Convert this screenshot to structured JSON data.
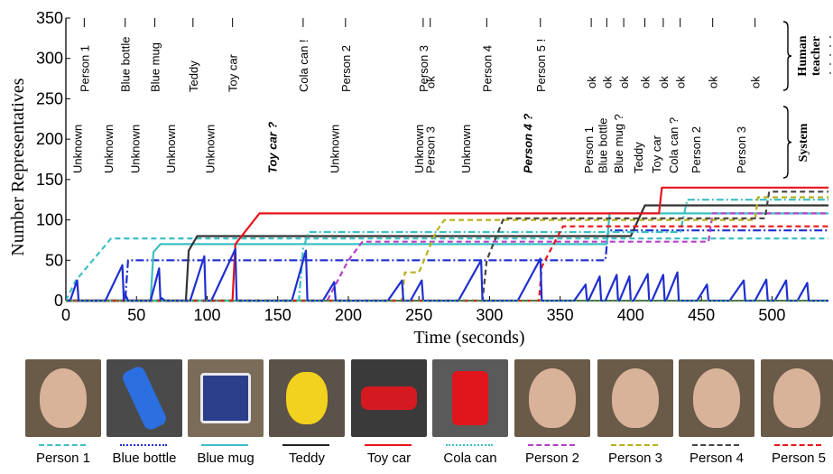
{
  "chart_data": {
    "type": "line",
    "xlabel": "Time (seconds)",
    "ylabel": "Number Representatives",
    "xlim": [
      0,
      540
    ],
    "ylim": [
      0,
      350
    ],
    "xticks": [
      0,
      50,
      100,
      150,
      200,
      250,
      300,
      350,
      400,
      450,
      500
    ],
    "yticks": [
      0,
      50,
      100,
      150,
      200,
      250,
      300,
      350
    ],
    "grid": false,
    "legend_placement": "bottom",
    "series": [
      {
        "name": "Person 1",
        "color": "#3dbfc4",
        "dash": "6,4",
        "points": [
          [
            0,
            0
          ],
          [
            7,
            25
          ],
          [
            20,
            52
          ],
          [
            32,
            77
          ],
          [
            540,
            77
          ]
        ]
      },
      {
        "name": "Blue bottle",
        "color": "#1f2fd0",
        "dash": "9,3,2,3",
        "points": [
          [
            0,
            0
          ],
          [
            42,
            0
          ],
          [
            44,
            50
          ],
          [
            382,
            50
          ],
          [
            384,
            87
          ],
          [
            540,
            87
          ]
        ]
      },
      {
        "name": "Blue mug",
        "color": "#3dbfc4",
        "dash": "",
        "points": [
          [
            0,
            0
          ],
          [
            60,
            0
          ],
          [
            62,
            60
          ],
          [
            67,
            70
          ],
          [
            383,
            70
          ],
          [
            385,
            108
          ],
          [
            540,
            108
          ]
        ]
      },
      {
        "name": "Teddy",
        "color": "#333333",
        "dash": "",
        "points": [
          [
            0,
            0
          ],
          [
            85,
            0
          ],
          [
            87,
            62
          ],
          [
            93,
            80
          ],
          [
            400,
            80
          ],
          [
            410,
            118
          ],
          [
            540,
            118
          ]
        ]
      },
      {
        "name": "Toy car",
        "color": "#e8141c",
        "dash": "",
        "points": [
          [
            0,
            0
          ],
          [
            118,
            0
          ],
          [
            120,
            70
          ],
          [
            137,
            108
          ],
          [
            420,
            108
          ],
          [
            422,
            140
          ],
          [
            540,
            140
          ]
        ]
      },
      {
        "name": "Cola can",
        "color": "#3dbfc4",
        "dash": "8,3,2,3",
        "points": [
          [
            0,
            0
          ],
          [
            165,
            0
          ],
          [
            168,
            65
          ],
          [
            172,
            85
          ],
          [
            435,
            85
          ],
          [
            440,
            125
          ],
          [
            540,
            125
          ]
        ]
      },
      {
        "name": "Person 2",
        "color": "#b540c8",
        "dash": "6,4",
        "points": [
          [
            0,
            0
          ],
          [
            185,
            0
          ],
          [
            200,
            50
          ],
          [
            210,
            73
          ],
          [
            455,
            73
          ],
          [
            458,
            108
          ],
          [
            540,
            108
          ]
        ]
      },
      {
        "name": "Person 3",
        "color": "#b8b020",
        "dash": "6,4",
        "points": [
          [
            0,
            0
          ],
          [
            238,
            0
          ],
          [
            240,
            35
          ],
          [
            250,
            35
          ],
          [
            262,
            85
          ],
          [
            268,
            100
          ],
          [
            488,
            100
          ],
          [
            490,
            128
          ],
          [
            540,
            128
          ]
        ]
      },
      {
        "name": "Person 4",
        "color": "#444444",
        "dash": "6,4",
        "points": [
          [
            0,
            0
          ],
          [
            295,
            0
          ],
          [
            298,
            50
          ],
          [
            310,
            102
          ],
          [
            495,
            102
          ],
          [
            498,
            135
          ],
          [
            540,
            135
          ]
        ]
      },
      {
        "name": "Person 5",
        "color": "#e8141c",
        "dash": "6,4",
        "points": [
          [
            0,
            0
          ],
          [
            335,
            0
          ],
          [
            337,
            42
          ],
          [
            352,
            92
          ],
          [
            540,
            92
          ]
        ]
      },
      {
        "name": "",
        "color": "#1f2fd0",
        "dash": "",
        "points": [
          [
            0,
            0
          ],
          [
            3,
            0
          ],
          [
            8,
            25
          ],
          [
            9,
            0
          ],
          [
            28,
            0
          ],
          [
            40,
            44
          ],
          [
            41,
            0
          ],
          [
            42,
            8
          ],
          [
            44,
            0
          ],
          [
            60,
            0
          ],
          [
            66,
            40
          ],
          [
            67,
            0
          ],
          [
            68,
            3
          ],
          [
            70,
            0
          ],
          [
            88,
            0
          ],
          [
            98,
            55
          ],
          [
            99,
            0
          ],
          [
            103,
            0
          ],
          [
            120,
            64
          ],
          [
            121,
            0
          ],
          [
            160,
            0
          ],
          [
            170,
            62
          ],
          [
            171,
            0
          ],
          [
            182,
            0
          ],
          [
            190,
            23
          ],
          [
            191,
            0
          ],
          [
            228,
            0
          ],
          [
            238,
            25
          ],
          [
            239,
            0
          ],
          [
            244,
            0
          ],
          [
            252,
            25
          ],
          [
            253,
            0
          ],
          [
            278,
            0
          ],
          [
            294,
            50
          ],
          [
            295,
            0
          ],
          [
            320,
            0
          ],
          [
            336,
            52
          ],
          [
            337,
            0
          ],
          [
            360,
            0
          ],
          [
            368,
            20
          ],
          [
            369,
            0
          ],
          [
            370,
            0
          ],
          [
            378,
            30
          ],
          [
            379,
            0
          ],
          [
            382,
            0
          ],
          [
            390,
            32
          ],
          [
            391,
            0
          ],
          [
            392,
            0
          ],
          [
            399,
            30
          ],
          [
            400,
            0
          ],
          [
            402,
            0
          ],
          [
            412,
            33
          ],
          [
            413,
            0
          ],
          [
            415,
            0
          ],
          [
            423,
            32
          ],
          [
            424,
            0
          ],
          [
            425,
            0
          ],
          [
            433,
            35
          ],
          [
            434,
            0
          ],
          [
            447,
            0
          ],
          [
            454,
            20
          ],
          [
            455,
            0
          ],
          [
            470,
            0
          ],
          [
            480,
            25
          ],
          [
            481,
            0
          ],
          [
            488,
            0
          ],
          [
            496,
            26
          ],
          [
            497,
            0
          ],
          [
            502,
            0
          ],
          [
            510,
            25
          ],
          [
            511,
            0
          ],
          [
            518,
            0
          ],
          [
            525,
            22
          ],
          [
            526,
            0
          ],
          [
            540,
            0
          ]
        ]
      },
      {
        "name": "",
        "color": "#3aa03a",
        "dash": "2,3",
        "points": [
          [
            0,
            0
          ],
          [
            540,
            0
          ]
        ]
      }
    ],
    "annotations": {
      "human_teacher": [
        {
          "x": 13,
          "text": "Person 1"
        },
        {
          "x": 42,
          "text": "Blue bottle"
        },
        {
          "x": 63,
          "text": "Blue mug"
        },
        {
          "x": 90,
          "text": "Teddy"
        },
        {
          "x": 118,
          "text": "Toy car"
        },
        {
          "x": 168,
          "text": "Cola can !"
        },
        {
          "x": 198,
          "text": "Person 2"
        },
        {
          "x": 253,
          "text": "Person 3"
        },
        {
          "x": 258,
          "text": "ok"
        },
        {
          "x": 298,
          "text": "Person 4"
        },
        {
          "x": 336,
          "text": "Person 5 !"
        },
        {
          "x": 372,
          "text": "ok"
        },
        {
          "x": 383,
          "text": "ok"
        },
        {
          "x": 395,
          "text": "ok"
        },
        {
          "x": 410,
          "text": "ok"
        },
        {
          "x": 423,
          "text": "ok"
        },
        {
          "x": 435,
          "text": "ok"
        },
        {
          "x": 458,
          "text": "ok"
        },
        {
          "x": 488,
          "text": "ok"
        }
      ],
      "system": [
        {
          "x": 8,
          "text": "Unknown",
          "emph": false
        },
        {
          "x": 30,
          "text": "Unknown",
          "emph": false
        },
        {
          "x": 49,
          "text": "Unknown",
          "emph": false
        },
        {
          "x": 74,
          "text": "Unknown",
          "emph": false
        },
        {
          "x": 102,
          "text": "Unknown",
          "emph": false
        },
        {
          "x": 146,
          "text": "Toy car ?",
          "emph": true
        },
        {
          "x": 190,
          "text": "Unknown",
          "emph": false
        },
        {
          "x": 250,
          "text": "Unknown",
          "emph": false
        },
        {
          "x": 258,
          "text": "Person 3",
          "emph": false
        },
        {
          "x": 283,
          "text": "Unknown",
          "emph": false
        },
        {
          "x": 327,
          "text": "Person 4 ?",
          "emph": true
        },
        {
          "x": 370,
          "text": "Person 1",
          "emph": false
        },
        {
          "x": 380,
          "text": "Blue bottle",
          "emph": false
        },
        {
          "x": 391,
          "text": "Blue mug ?",
          "emph": false
        },
        {
          "x": 405,
          "text": "Teddy",
          "emph": false
        },
        {
          "x": 418,
          "text": "Toy car",
          "emph": false
        },
        {
          "x": 430,
          "text": "Cola can ?",
          "emph": false
        },
        {
          "x": 446,
          "text": "Person 2",
          "emph": false
        },
        {
          "x": 478,
          "text": "Person 3",
          "emph": false
        }
      ],
      "braces": [
        {
          "label_lines": [
            "Human",
            "teacher"
          ]
        },
        {
          "label_lines": [
            "System"
          ]
        }
      ]
    }
  },
  "legend": [
    {
      "label": "Person 1",
      "color": "#3dbfc4",
      "style": "dashed",
      "thumb": "face"
    },
    {
      "label": "Blue bottle",
      "color": "#1f2fd0",
      "style": "dashdot",
      "thumb": "bottle"
    },
    {
      "label": "Blue mug",
      "color": "#3dbfc4",
      "style": "solid",
      "thumb": "mug"
    },
    {
      "label": "Teddy",
      "color": "#222222",
      "style": "solid",
      "thumb": "teddy"
    },
    {
      "label": "Toy car",
      "color": "#e8141c",
      "style": "solid",
      "thumb": "car"
    },
    {
      "label": "Cola can",
      "color": "#3dbfc4",
      "style": "dashdot",
      "thumb": "can"
    },
    {
      "label": "Person 2",
      "color": "#b540c8",
      "style": "dashed",
      "thumb": "face"
    },
    {
      "label": "Person 3",
      "color": "#b8b020",
      "style": "dashed",
      "thumb": "face"
    },
    {
      "label": "Person 4",
      "color": "#444444",
      "style": "dashed",
      "thumb": "face"
    },
    {
      "label": "Person 5",
      "color": "#e8141c",
      "style": "dashed",
      "thumb": "face"
    }
  ]
}
